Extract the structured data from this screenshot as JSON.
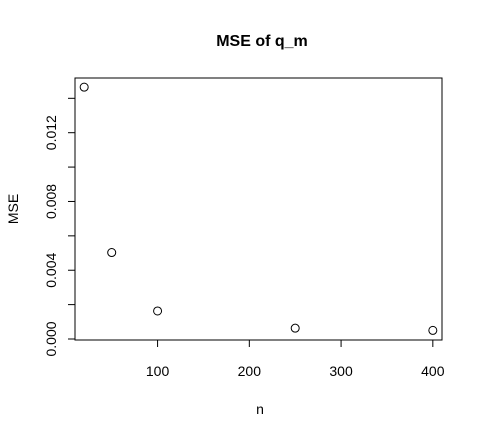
{
  "chart_data": {
    "type": "scatter",
    "title": "MSE of q_m",
    "xlabel": "n",
    "ylabel": "MSE",
    "xlim": [
      10,
      410
    ],
    "ylim": [
      0.0,
      0.0146
    ],
    "x_ticks": [
      100,
      200,
      300,
      400
    ],
    "y_ticks": [
      0.0,
      0.004,
      0.008,
      0.012
    ],
    "x_tick_labels": [
      "100",
      "200",
      "300",
      "400"
    ],
    "y_tick_labels": [
      "0.000",
      "0.004",
      "0.008",
      "0.012"
    ],
    "y_minor_ticks": [
      0.002,
      0.006,
      0.01,
      0.014
    ],
    "points": [
      {
        "x": 20,
        "y": 0.01465
      },
      {
        "x": 50,
        "y": 0.00503
      },
      {
        "x": 100,
        "y": 0.00163
      },
      {
        "x": 250,
        "y": 0.00063
      },
      {
        "x": 400,
        "y": 0.0005
      }
    ],
    "marker": "open-circle",
    "grid": false,
    "legend": "none"
  }
}
